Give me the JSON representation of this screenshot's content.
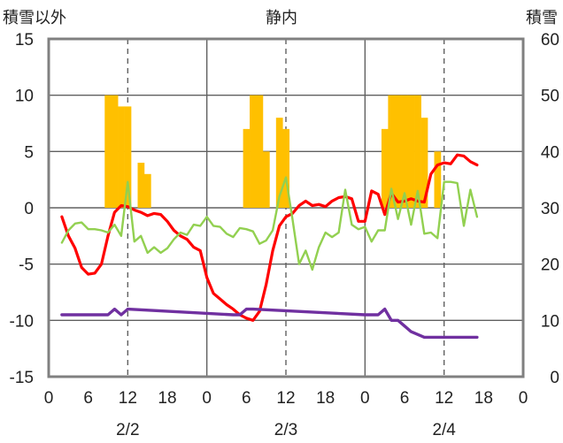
{
  "chart_data": {
    "type": "bar+line",
    "title": "静内",
    "ylabel_left": "積雪以外",
    "ylabel_right": "積雪",
    "ylim_left": [
      -15,
      15
    ],
    "ylim_right": [
      0,
      60
    ],
    "yticks_left": [
      15,
      10,
      5,
      0,
      -5,
      -10,
      -15
    ],
    "yticks_right": [
      60,
      50,
      40,
      30,
      20,
      10,
      0
    ],
    "xlim": [
      0,
      72
    ],
    "x_tick_labels": [
      "0",
      "6",
      "12",
      "18",
      "0",
      "6",
      "12",
      "18",
      "0",
      "6",
      "12",
      "18",
      "0"
    ],
    "date_labels": [
      "2/2",
      "2/3",
      "2/4"
    ],
    "colors": {
      "snow_bar": "#ffc000",
      "red_line": "#ff0000",
      "green_line": "#92d050",
      "purple_line": "#7030a0",
      "frame": "#808080",
      "grid": "#606060"
    },
    "series": [
      {
        "type": "bar",
        "axis": "left",
        "x": [
          9,
          10,
          11,
          12,
          14,
          15,
          30,
          31,
          32,
          33,
          35,
          36,
          51,
          52,
          53,
          54,
          55,
          56,
          57,
          59
        ],
        "values": [
          10,
          10,
          9,
          9,
          4,
          3,
          7,
          10,
          10,
          5,
          8,
          7,
          7,
          10,
          10,
          10,
          10,
          10,
          8,
          5
        ]
      },
      {
        "type": "line",
        "axis": "left",
        "color": "#ff0000",
        "x": [
          2,
          3,
          4,
          5,
          6,
          7,
          8,
          9,
          10,
          11,
          12,
          13,
          14,
          15,
          16,
          17,
          18,
          19,
          20,
          21,
          22,
          23,
          24,
          25,
          26,
          27,
          28,
          29,
          30,
          31,
          32,
          33,
          34,
          35,
          36,
          37,
          38,
          39,
          40,
          41,
          42,
          43,
          44,
          45,
          46,
          47,
          48,
          49,
          50,
          51,
          52,
          53,
          54,
          55,
          56,
          57,
          58,
          59,
          60,
          61,
          62,
          63,
          64,
          65
        ],
        "values": [
          -0.8,
          -2.5,
          -3.6,
          -5.3,
          -5.9,
          -5.8,
          -5,
          -2.5,
          -0.4,
          0.2,
          0.1,
          -0.2,
          -0.4,
          -0.7,
          -0.5,
          -0.6,
          -1.2,
          -2,
          -2.5,
          -2.8,
          -3.5,
          -3.8,
          -6.2,
          -7.6,
          -8.1,
          -8.6,
          -9,
          -9.5,
          -9.8,
          -10,
          -9.2,
          -6.8,
          -3.8,
          -1.6,
          -0.8,
          -0.5,
          0.2,
          0.6,
          0.2,
          0.3,
          0.1,
          0.6,
          0.9,
          1,
          0.8,
          -1.2,
          -1.2,
          1.5,
          1.2,
          -0.6,
          1.3,
          0.5,
          0.6,
          0.8,
          0.6,
          0.5,
          3,
          3.8,
          4,
          3.9,
          4.7,
          4.6,
          4.1,
          3.8
        ]
      },
      {
        "type": "line",
        "axis": "left",
        "color": "#92d050",
        "x": [
          2,
          3,
          4,
          5,
          6,
          7,
          8,
          9,
          10,
          11,
          12,
          13,
          14,
          15,
          16,
          17,
          18,
          19,
          20,
          21,
          22,
          23,
          24,
          25,
          26,
          27,
          28,
          29,
          30,
          31,
          32,
          33,
          34,
          35,
          36,
          37,
          38,
          39,
          40,
          41,
          42,
          43,
          44,
          45,
          46,
          47,
          48,
          49,
          50,
          51,
          52,
          53,
          54,
          55,
          56,
          57,
          58,
          59,
          60,
          61,
          62,
          63,
          64,
          65
        ],
        "values": [
          -3.1,
          -2,
          -1.4,
          -1.3,
          -1.9,
          -1.9,
          -2,
          -2.2,
          -1.5,
          -2.5,
          2.3,
          -3,
          -2.5,
          -4,
          -3.5,
          -4,
          -3.6,
          -2.8,
          -2.2,
          -2.4,
          -1.5,
          -1.6,
          -0.8,
          -1.6,
          -1.7,
          -2.3,
          -2.6,
          -1.8,
          -1.9,
          -2.1,
          -3.2,
          -2.9,
          -2,
          1,
          2.7,
          -1,
          -5,
          -3.8,
          -5.5,
          -3.5,
          -2.2,
          -2.6,
          -2.2,
          1.6,
          -1.5,
          -1.9,
          -1.7,
          -3,
          -2,
          -2,
          1.7,
          -1,
          1.3,
          -1.5,
          1.5,
          -2.3,
          -2.2,
          -2.7,
          2.3,
          2.3,
          2.2,
          -1.6,
          1.6,
          -0.8
        ]
      },
      {
        "type": "line",
        "axis": "left",
        "color": "#7030a0",
        "x": [
          2,
          8,
          9,
          10,
          11,
          12,
          28,
          29,
          30,
          31,
          48,
          49,
          50,
          51,
          52,
          53,
          54,
          55,
          57,
          58,
          65
        ],
        "values": [
          -9.5,
          -9.5,
          -9.5,
          -9,
          -9.5,
          -9,
          -9.5,
          -9.5,
          -9,
          -9,
          -9.5,
          -9.5,
          -9.5,
          -9,
          -10,
          -10,
          -10.5,
          -11,
          -11.5,
          -11.5,
          -11.5
        ]
      }
    ]
  }
}
